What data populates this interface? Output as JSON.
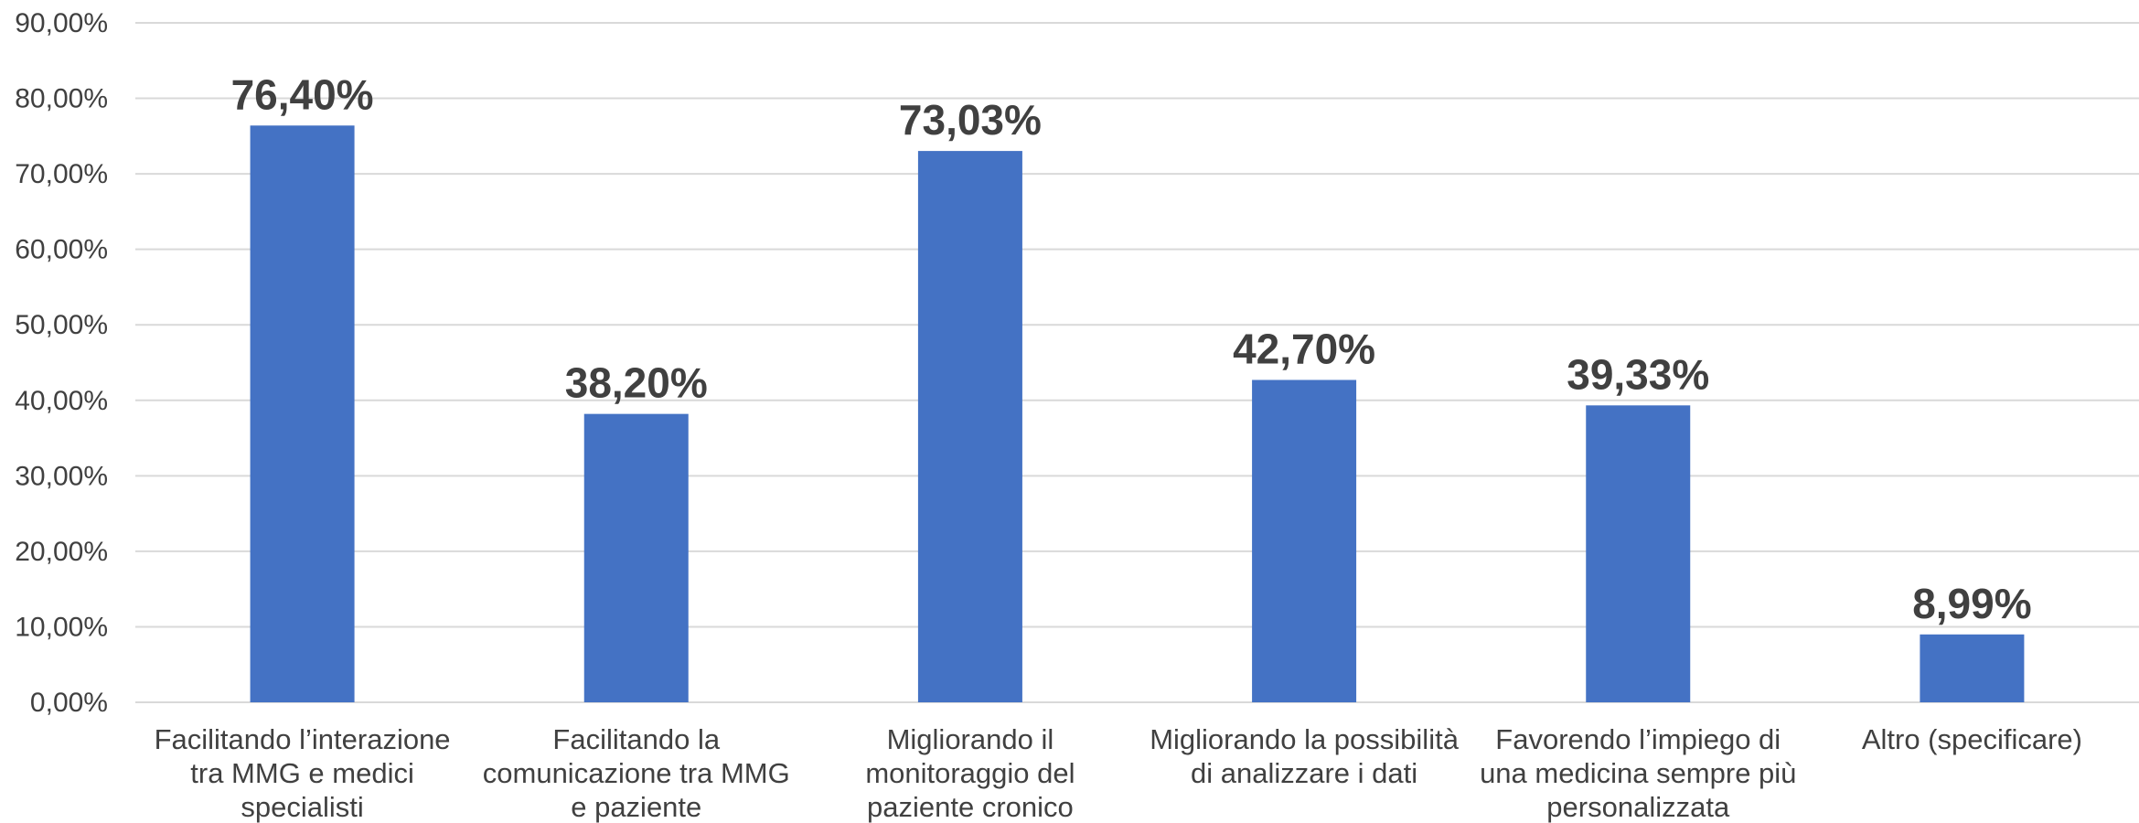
{
  "chart_data": {
    "type": "bar",
    "categories": [
      [
        "Facilitando l’interazione",
        "tra MMG e medici",
        "specialisti"
      ],
      [
        "Facilitando la",
        "comunicazione tra MMG",
        "e paziente"
      ],
      [
        "Migliorando il",
        "monitoraggio del",
        "paziente cronico"
      ],
      [
        "Migliorando la possibilità",
        "di analizzare i dati"
      ],
      [
        "Favorendo l’impiego di",
        "una medicina sempre più",
        "personalizzata"
      ],
      [
        "Altro (specificare)"
      ]
    ],
    "values": [
      76.4,
      38.2,
      73.03,
      42.7,
      39.33,
      8.99
    ],
    "data_labels": [
      "76,40%",
      "38,20%",
      "73,03%",
      "42,70%",
      "39,33%",
      "8,99%"
    ],
    "yticks": [
      {
        "value": 0,
        "label": "0,00%"
      },
      {
        "value": 10,
        "label": "10,00%"
      },
      {
        "value": 20,
        "label": "20,00%"
      },
      {
        "value": 30,
        "label": "30,00%"
      },
      {
        "value": 40,
        "label": "40,00%"
      },
      {
        "value": 50,
        "label": "50,00%"
      },
      {
        "value": 60,
        "label": "60,00%"
      },
      {
        "value": 70,
        "label": "70,00%"
      },
      {
        "value": 80,
        "label": "80,00%"
      },
      {
        "value": 90,
        "label": "90,00%"
      }
    ],
    "ylim": [
      0,
      90
    ],
    "grid": true,
    "legend": "none",
    "bar_color": "#4472C4"
  }
}
